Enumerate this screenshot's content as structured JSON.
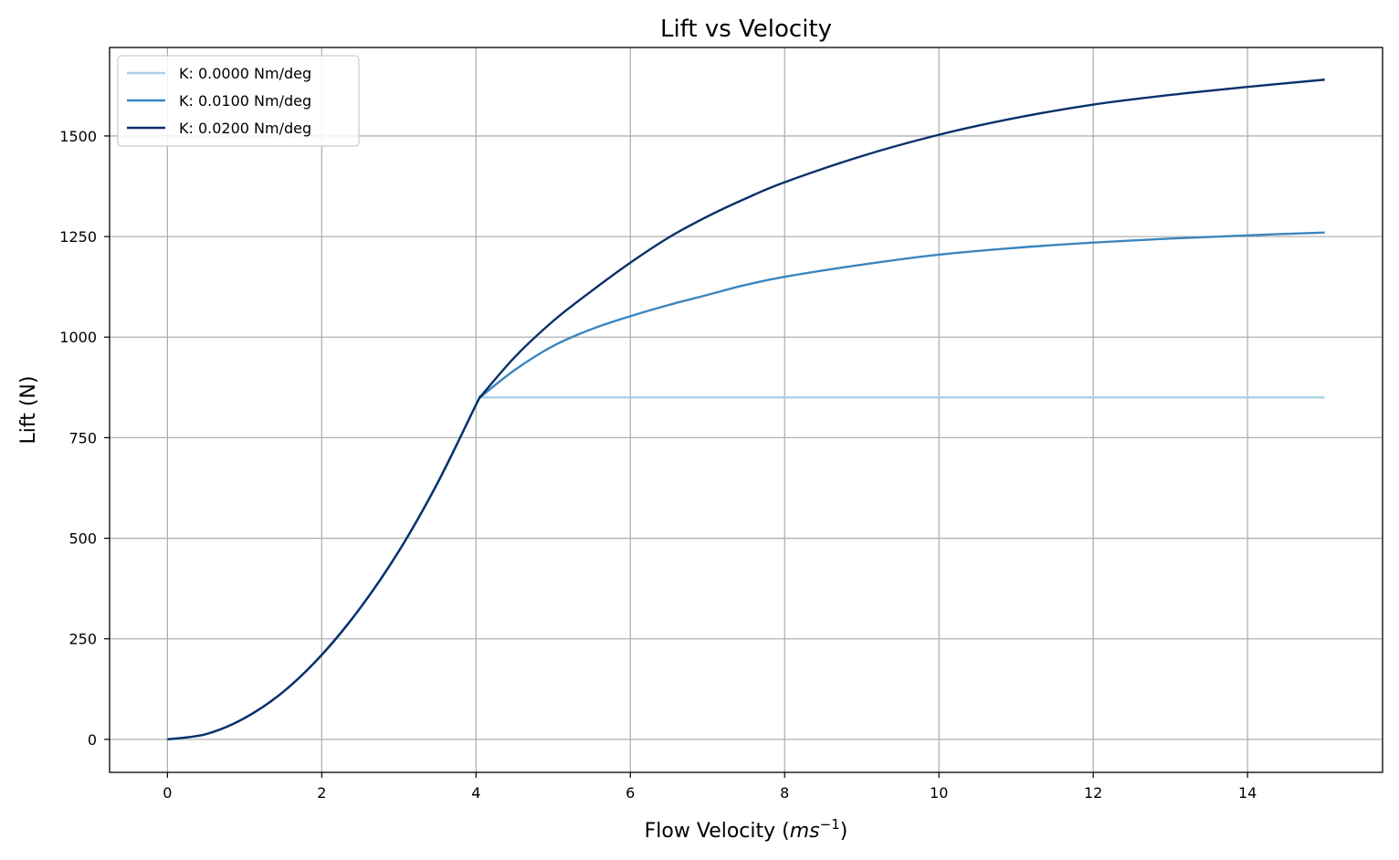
{
  "chart_data": {
    "type": "line",
    "title": "Lift vs Velocity",
    "xlabel": "Flow Velocity (ms⁻¹)",
    "xlabel_parts": {
      "main": "Flow Velocity (",
      "italic": "ms",
      "sup": "−1",
      "close": ")"
    },
    "ylabel": "Lift (N)",
    "xlim": [
      -0.75,
      15.75
    ],
    "ylim": [
      -82,
      1720
    ],
    "xticks": [
      0,
      2,
      4,
      6,
      8,
      10,
      12,
      14
    ],
    "yticks": [
      0,
      250,
      500,
      750,
      1000,
      1250,
      1500
    ],
    "grid": true,
    "legend_position": "top-left",
    "series": [
      {
        "name": "K: 0.0000 Nm/deg",
        "color": "#abd0e6",
        "x": [
          0,
          0.5,
          1,
          1.5,
          2,
          2.5,
          3,
          3.5,
          4,
          4.05,
          5,
          6,
          7,
          8,
          9,
          10,
          11,
          12,
          13,
          14,
          15
        ],
        "y": [
          0,
          13,
          53,
          118,
          210,
          327,
          468,
          637,
          832,
          850,
          850,
          850,
          850,
          850,
          850,
          850,
          850,
          850,
          850,
          850,
          850
        ]
      },
      {
        "name": "K: 0.0100 Nm/deg",
        "color": "#3b86c0",
        "x": [
          0,
          0.5,
          1,
          1.5,
          2,
          2.5,
          3,
          3.5,
          4,
          4.05,
          4.5,
          5,
          5.5,
          6,
          6.5,
          7,
          7.5,
          8,
          9,
          10,
          11,
          12,
          13,
          14,
          15
        ],
        "y": [
          0,
          13,
          53,
          118,
          210,
          327,
          468,
          637,
          832,
          850,
          918,
          978,
          1020,
          1052,
          1080,
          1105,
          1130,
          1150,
          1180,
          1205,
          1222,
          1235,
          1245,
          1253,
          1260
        ]
      },
      {
        "name": "K: 0.0200 Nm/deg",
        "color": "#08306b",
        "x": [
          0,
          0.5,
          1,
          1.5,
          2,
          2.5,
          3,
          3.5,
          4,
          4.05,
          4.5,
          5,
          5.5,
          6,
          6.5,
          7,
          7.5,
          8,
          9,
          10,
          11,
          12,
          13,
          14,
          15
        ],
        "y": [
          0,
          13,
          53,
          118,
          210,
          327,
          468,
          637,
          832,
          850,
          950,
          1040,
          1115,
          1185,
          1248,
          1300,
          1345,
          1385,
          1450,
          1503,
          1545,
          1578,
          1602,
          1622,
          1640
        ]
      }
    ]
  }
}
